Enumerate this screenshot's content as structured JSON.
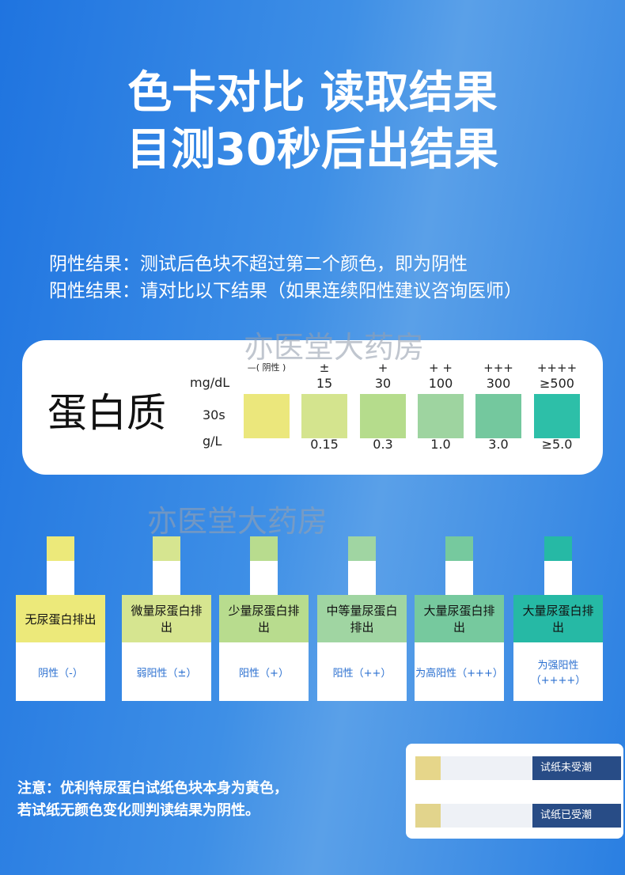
{
  "header": {
    "lines": [
      "色卡对比 读取结果",
      "目测30秒后出结果"
    ]
  },
  "intro": {
    "lines": [
      "阴性结果：测试后色块不超过第二个颜色，即为阴性",
      "阳性结果：请对比以下结果（如果连续阳性建议咨询医师）"
    ]
  },
  "watermarks": [
    "亦医堂大药房",
    "亦医堂大药房"
  ],
  "card": {
    "title": "蛋白质",
    "labels": [
      "mg/dL",
      "30s",
      "g/L"
    ],
    "levels": [
      {
        "symbol": "—( 阴性 )",
        "color": "#ebe77c"
      },
      {
        "symbol": "±",
        "mg": "15",
        "gl": "0.15",
        "color": "#d4e48e"
      },
      {
        "symbol": "+",
        "mg": "30",
        "gl": "0.3",
        "color": "#b5dc8c"
      },
      {
        "symbol": "+ +",
        "mg": "100",
        "gl": "1.0",
        "color": "#9ed4a0"
      },
      {
        "symbol": "+++",
        "mg": "300",
        "gl": "3.0",
        "color": "#74c89e"
      },
      {
        "symbol": "++++",
        "mg": "≥500",
        "gl": "≥5.0",
        "color": "#2dbfa8"
      }
    ]
  },
  "strips": [
    {
      "name": "无尿蛋白排出",
      "result": "阴性（-）",
      "color": "#ece97a"
    },
    {
      "name": "微量尿蛋白排出",
      "result": "弱阳性（±）",
      "color": "#d6e590"
    },
    {
      "name": "少量尿蛋白排出",
      "result": "阳性（+）",
      "color": "#b8dc8e"
    },
    {
      "name": "中等量尿蛋白排出",
      "result": "阳性（++）",
      "color": "#a0d5a2"
    },
    {
      "name": "大量尿蛋白排出",
      "result": "为高阳性（+++）",
      "color": "#76c99e"
    },
    {
      "name": "大量尿蛋白排出",
      "result": "为强阳性（++++）",
      "color": "#26b9a5"
    }
  ],
  "note": {
    "lines": [
      "注意：优利特尿蛋白试纸色块本身为黄色，",
      "若试纸无颜色变化则判读结果为阴性。"
    ]
  },
  "moisture": [
    "试纸未受潮",
    "试纸已受潮"
  ]
}
